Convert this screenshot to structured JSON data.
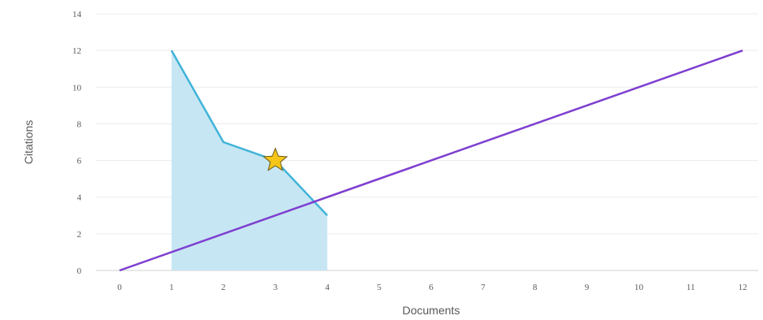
{
  "chart_data": {
    "type": "line",
    "xlabel": "Documents",
    "ylabel": "Citations",
    "xlim": [
      0,
      12
    ],
    "ylim": [
      0,
      14
    ],
    "x_ticks": [
      0,
      1,
      2,
      3,
      4,
      5,
      6,
      7,
      8,
      9,
      10,
      11,
      12
    ],
    "y_ticks": [
      0,
      2,
      4,
      6,
      8,
      10,
      12,
      14
    ],
    "grid": "horizontal",
    "series": [
      {
        "type": "area",
        "x": [
          1,
          2,
          3,
          4
        ],
        "y": [
          12,
          7,
          6,
          3
        ],
        "color": "#40b4d8",
        "fill_color": "#c7e6f3"
      },
      {
        "type": "line",
        "x": [
          0,
          12
        ],
        "y": [
          0,
          12
        ],
        "color": "#7e3fd0"
      }
    ],
    "annotations": [
      {
        "type": "star-marker",
        "x": 3,
        "y": 6,
        "color": "#f5c518"
      }
    ]
  }
}
